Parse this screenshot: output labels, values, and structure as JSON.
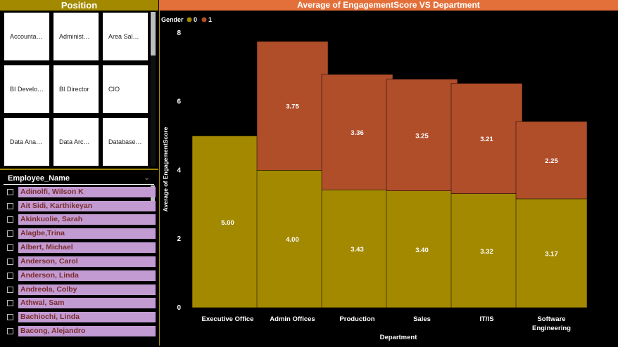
{
  "position_slicer": {
    "title": "Position",
    "tiles": [
      "Accounta…",
      "Administ…",
      "Area Sal…",
      "BI Develo…",
      "BI Director",
      "CIO",
      "Data Ana…",
      "Data Arc…",
      "Database…"
    ]
  },
  "employee_slicer": {
    "title": "Employee_Name",
    "names": [
      "Adinolfi, Wilson K",
      "Ait Sidi, Karthikeyan",
      "Akinkuolie, Sarah",
      "Alagbe,Trina",
      "Albert, Michael",
      "Anderson, Carol",
      "Anderson, Linda",
      "Andreola, Colby",
      "Athwal, Sam",
      "Bachiochi, Linda",
      "Bacong, Alejandro"
    ]
  },
  "chart": {
    "title": "Average of EngagementScore VS Department",
    "legend_title": "Gender",
    "colors": {
      "gender_0": "#A38900",
      "gender_1": "#B04E2A"
    }
  },
  "chart_data": {
    "type": "bar",
    "stacked": true,
    "title": "Average of EngagementScore VS Department",
    "categories": [
      "Executive Office",
      "Admin Offices",
      "Production",
      "Sales",
      "IT/IS",
      "Software Engineering"
    ],
    "series": [
      {
        "name": "0",
        "values": [
          5.0,
          4.0,
          3.43,
          3.4,
          3.32,
          3.17
        ]
      },
      {
        "name": "1",
        "values": [
          null,
          3.75,
          3.36,
          3.25,
          3.21,
          2.25
        ]
      }
    ],
    "xlabel": "Department",
    "ylabel": "Average of EngagementScore",
    "ylim": [
      0,
      8
    ],
    "yticks": [
      0,
      2,
      4,
      6,
      8
    ],
    "legend": "top-left",
    "grid": false
  }
}
